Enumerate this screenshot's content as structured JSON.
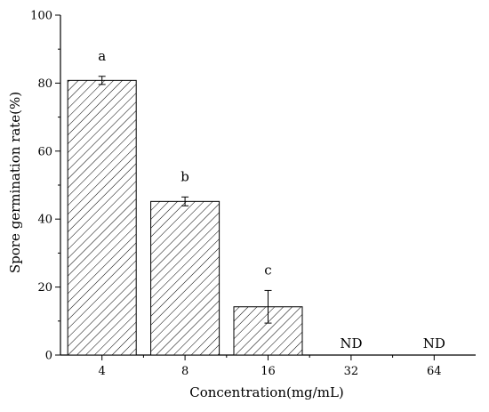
{
  "chart_data": {
    "type": "bar",
    "categories": [
      "4",
      "8",
      "16",
      "32",
      "64"
    ],
    "values": [
      80.8,
      45.2,
      14.2,
      0,
      0
    ],
    "errors": [
      1.2,
      1.3,
      4.8,
      0,
      0
    ],
    "labels": [
      "a",
      "b",
      "c",
      "ND",
      "ND"
    ],
    "xlabel": "Concentration(mg/mL)",
    "ylabel": "Spore germination rate(%)",
    "ylim": [
      0,
      100
    ],
    "yticks": [
      "0",
      "20",
      "40",
      "60",
      "80",
      "100"
    ],
    "bar_fill": "diagonal-hatch",
    "grid": false
  }
}
